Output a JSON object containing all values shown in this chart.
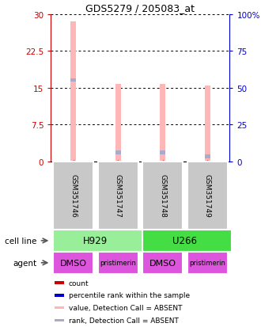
{
  "title": "GDS5279 / 205083_at",
  "samples": [
    "GSM351746",
    "GSM351747",
    "GSM351748",
    "GSM351749"
  ],
  "bar_values": [
    28.5,
    15.7,
    15.7,
    15.4
  ],
  "rank_values": [
    16.5,
    1.8,
    1.8,
    1.0
  ],
  "bar_color_absent": "#FFB6B6",
  "rank_color_absent": "#AAAACC",
  "bar_width": 0.12,
  "ylim_left": [
    0,
    30
  ],
  "ylim_right": [
    0,
    100
  ],
  "yticks_left": [
    0,
    7.5,
    15,
    22.5,
    30
  ],
  "yticks_right": [
    0,
    25,
    50,
    75,
    100
  ],
  "ytick_labels_left": [
    "0",
    "7.5",
    "15",
    "22.5",
    "30"
  ],
  "ytick_labels_right": [
    "0",
    "25",
    "50",
    "75",
    "100%"
  ],
  "left_axis_color": "#CC0000",
  "right_axis_color": "#0000CC",
  "cell_line_labels": [
    "H929",
    "U266"
  ],
  "cell_line_spans": [
    [
      0,
      2
    ],
    [
      2,
      4
    ]
  ],
  "cell_line_colors": [
    "#99EE99",
    "#44DD44"
  ],
  "agent_labels": [
    "DMSO",
    "pristimerin",
    "DMSO",
    "pristimerin"
  ],
  "agent_color": "#DD55DD",
  "legend_colors": [
    "#CC0000",
    "#0000CC",
    "#FFB6B6",
    "#AAAACC"
  ],
  "legend_labels": [
    "count",
    "percentile rank within the sample",
    "value, Detection Call = ABSENT",
    "rank, Detection Call = ABSENT"
  ],
  "xlim": [
    -0.5,
    3.5
  ],
  "n_bars": 4
}
